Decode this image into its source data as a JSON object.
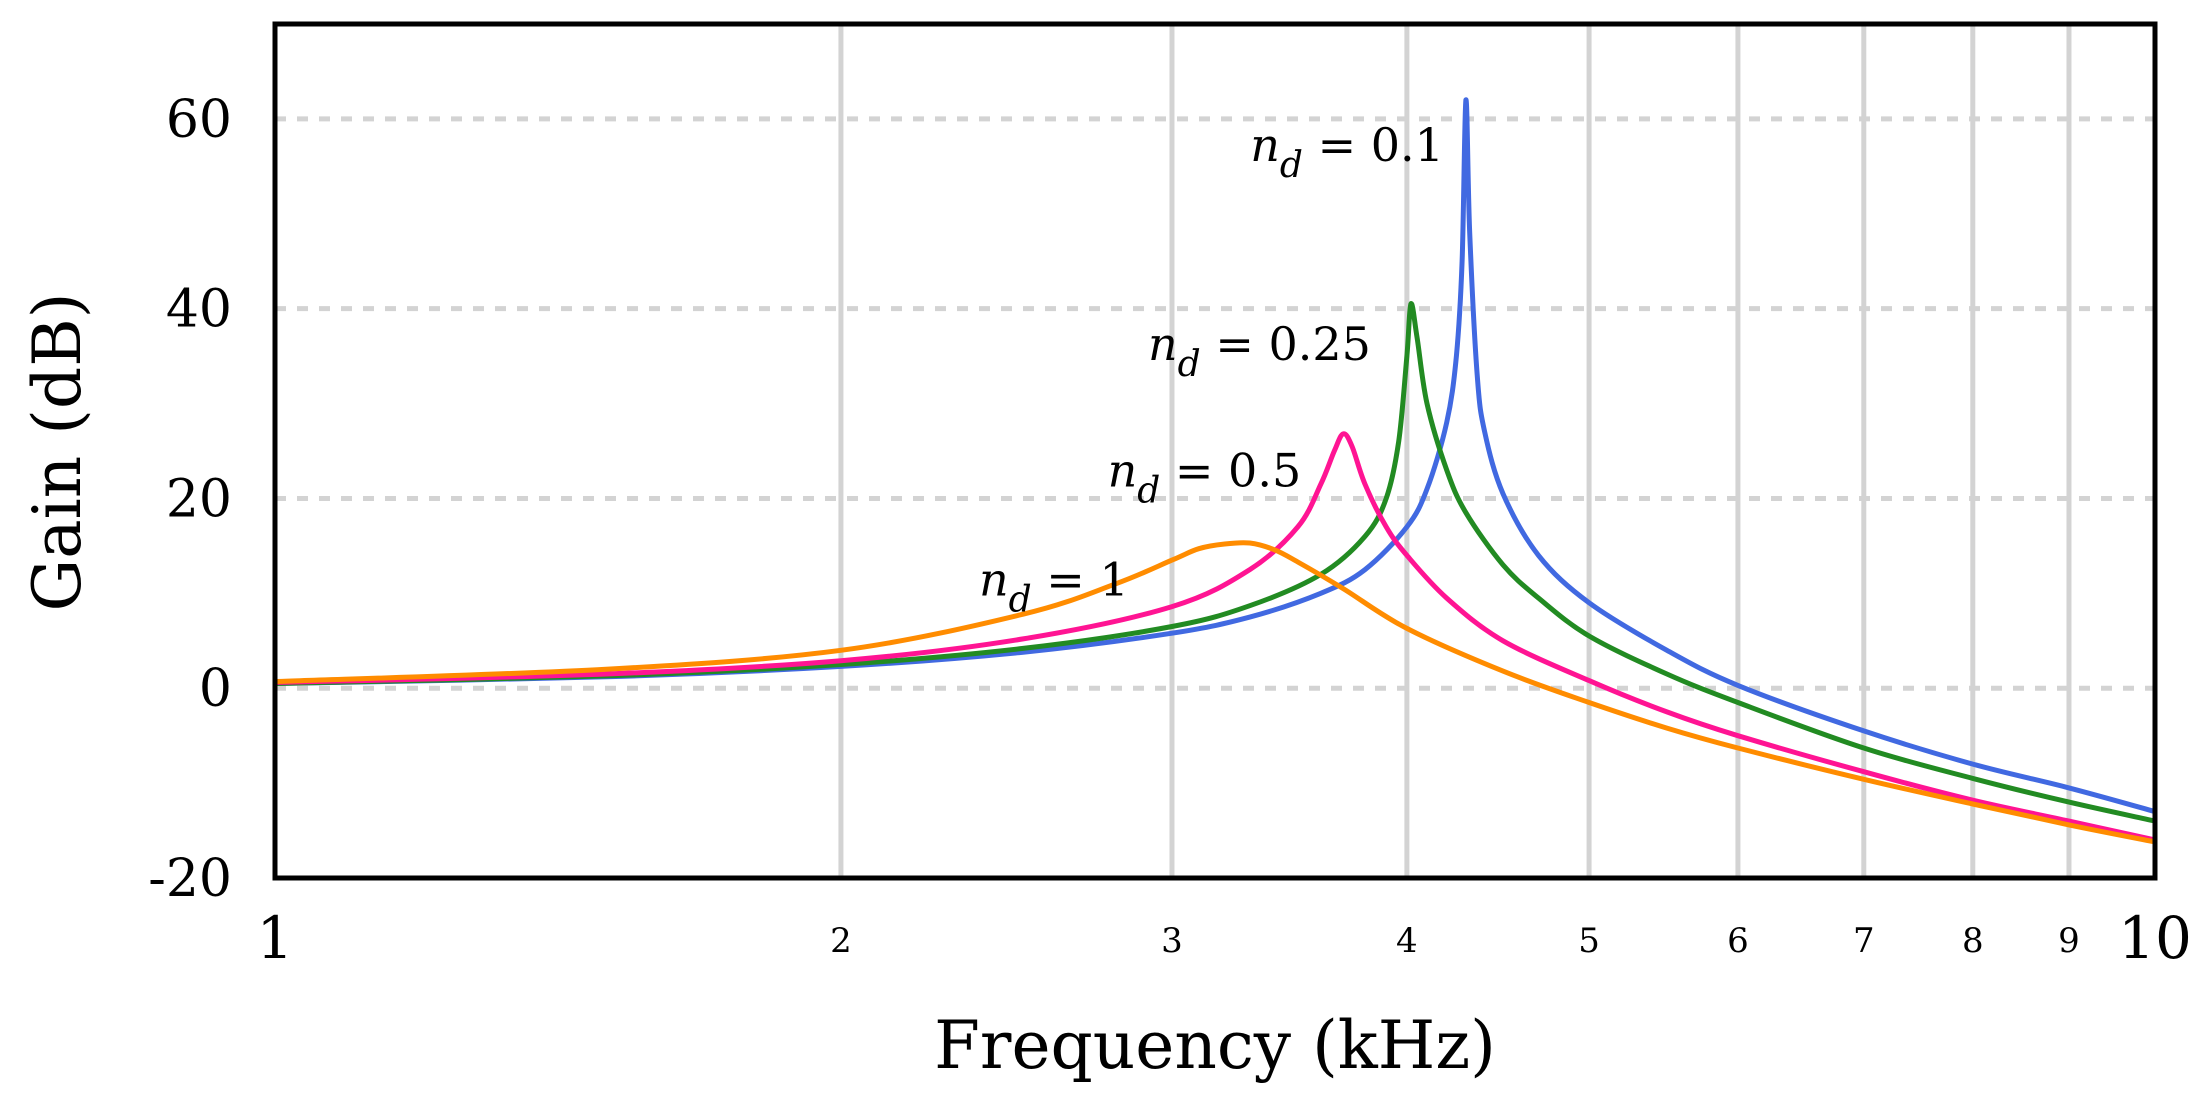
{
  "chart_data": {
    "type": "line",
    "xscale": "log",
    "xlabel": "Frequency (kHz)",
    "ylabel": "Gain (dB)",
    "xlim": [
      1,
      10
    ],
    "ylim": [
      -20,
      70
    ],
    "grid": true,
    "x_ticks": [
      {
        "value": 1,
        "label": "1",
        "major": true
      },
      {
        "value": 2,
        "label": "2",
        "major": false
      },
      {
        "value": 3,
        "label": "3",
        "major": false
      },
      {
        "value": 4,
        "label": "4",
        "major": false
      },
      {
        "value": 5,
        "label": "5",
        "major": false
      },
      {
        "value": 6,
        "label": "6",
        "major": false
      },
      {
        "value": 7,
        "label": "7",
        "major": false
      },
      {
        "value": 8,
        "label": "8",
        "major": false
      },
      {
        "value": 9,
        "label": "9",
        "major": false
      },
      {
        "value": 10,
        "label": "10",
        "major": true
      }
    ],
    "y_ticks": [
      {
        "value": -20,
        "label": "-20"
      },
      {
        "value": 0,
        "label": "0"
      },
      {
        "value": 20,
        "label": "20"
      },
      {
        "value": 40,
        "label": "40"
      },
      {
        "value": 60,
        "label": "60"
      }
    ],
    "series": [
      {
        "name": "n_d = 0.1",
        "label_var": "n",
        "label_sub": "d",
        "label_rest": " = 0.1",
        "color": "#4169E1",
        "x": [
          1,
          1.5,
          2,
          2.5,
          3,
          3.3,
          3.6,
          3.8,
          4.0,
          4.1,
          4.2,
          4.25,
          4.28,
          4.3,
          4.32,
          4.36,
          4.4,
          4.5,
          4.7,
          5,
          5.5,
          6,
          7,
          8,
          9,
          10
        ],
        "y": [
          0.5,
          1.2,
          2.3,
          3.8,
          5.8,
          7.5,
          10,
          12.5,
          17,
          21,
          28,
          35,
          45,
          62,
          48,
          33,
          27,
          20.5,
          14,
          9,
          4,
          0.3,
          -4.5,
          -8,
          -10.5,
          -13
        ]
      },
      {
        "name": "n_d = 0.25",
        "label_var": "n",
        "label_sub": "d",
        "label_rest": " = 0.25",
        "color": "#228B22",
        "x": [
          1,
          1.5,
          2,
          2.5,
          3,
          3.3,
          3.6,
          3.8,
          3.9,
          3.96,
          4.0,
          4.02,
          4.05,
          4.1,
          4.2,
          4.3,
          4.5,
          4.7,
          5,
          5.5,
          6,
          7,
          8,
          9,
          10
        ],
        "y": [
          0.5,
          1.3,
          2.5,
          4.2,
          6.5,
          8.7,
          12,
          16,
          20,
          26,
          35,
          40.5,
          37,
          30,
          23,
          18.5,
          13,
          9.5,
          5.5,
          1.5,
          -1.5,
          -6.3,
          -9.5,
          -12,
          -14
        ]
      },
      {
        "name": "n_d = 0.5",
        "label_var": "n",
        "label_sub": "d",
        "label_rest": " = 0.5",
        "color": "#FF1493",
        "x": [
          1,
          1.5,
          2,
          2.5,
          3,
          3.3,
          3.5,
          3.6,
          3.66,
          3.7,
          3.74,
          3.8,
          3.9,
          4.0,
          4.2,
          4.5,
          5,
          5.5,
          6,
          7,
          8,
          9,
          10
        ],
        "y": [
          0.6,
          1.5,
          2.9,
          5.2,
          8.6,
          12.5,
          17,
          21.5,
          25,
          26.8,
          25.5,
          21.5,
          17,
          14,
          9.5,
          5,
          0.8,
          -2.5,
          -5,
          -8.8,
          -11.8,
          -14,
          -16
        ]
      },
      {
        "name": "n_d = 1",
        "label_var": "n",
        "label_sub": "d",
        "label_rest": " = 1",
        "color": "#FF8C00",
        "x": [
          1,
          1.5,
          2,
          2.5,
          2.8,
          3,
          3.1,
          3.2,
          3.3,
          3.4,
          3.5,
          3.7,
          4.0,
          4.5,
          5,
          5.5,
          6,
          7,
          8,
          9,
          10
        ],
        "y": [
          0.7,
          2.0,
          4.0,
          7.8,
          11,
          13.5,
          14.7,
          15.2,
          15.3,
          14.6,
          13.3,
          10.5,
          6.3,
          1.8,
          -1.5,
          -4.2,
          -6.3,
          -9.6,
          -12.2,
          -14.4,
          -16.2
        ]
      }
    ],
    "annotations": [
      {
        "series": 0,
        "var": "n",
        "sub": "d",
        "rest": " = 0.1",
        "x": 4.3,
        "y": 60
      },
      {
        "series": 1,
        "var": "n",
        "sub": "d",
        "rest": " = 0.25",
        "x": 4.02,
        "y": 39
      },
      {
        "series": 2,
        "var": "n",
        "sub": "d",
        "rest": " = 0.5",
        "x": 3.7,
        "y": 25.5
      },
      {
        "series": 3,
        "var": "n",
        "sub": "d",
        "rest": " = 1",
        "x": 3.1,
        "y": 14
      }
    ]
  }
}
